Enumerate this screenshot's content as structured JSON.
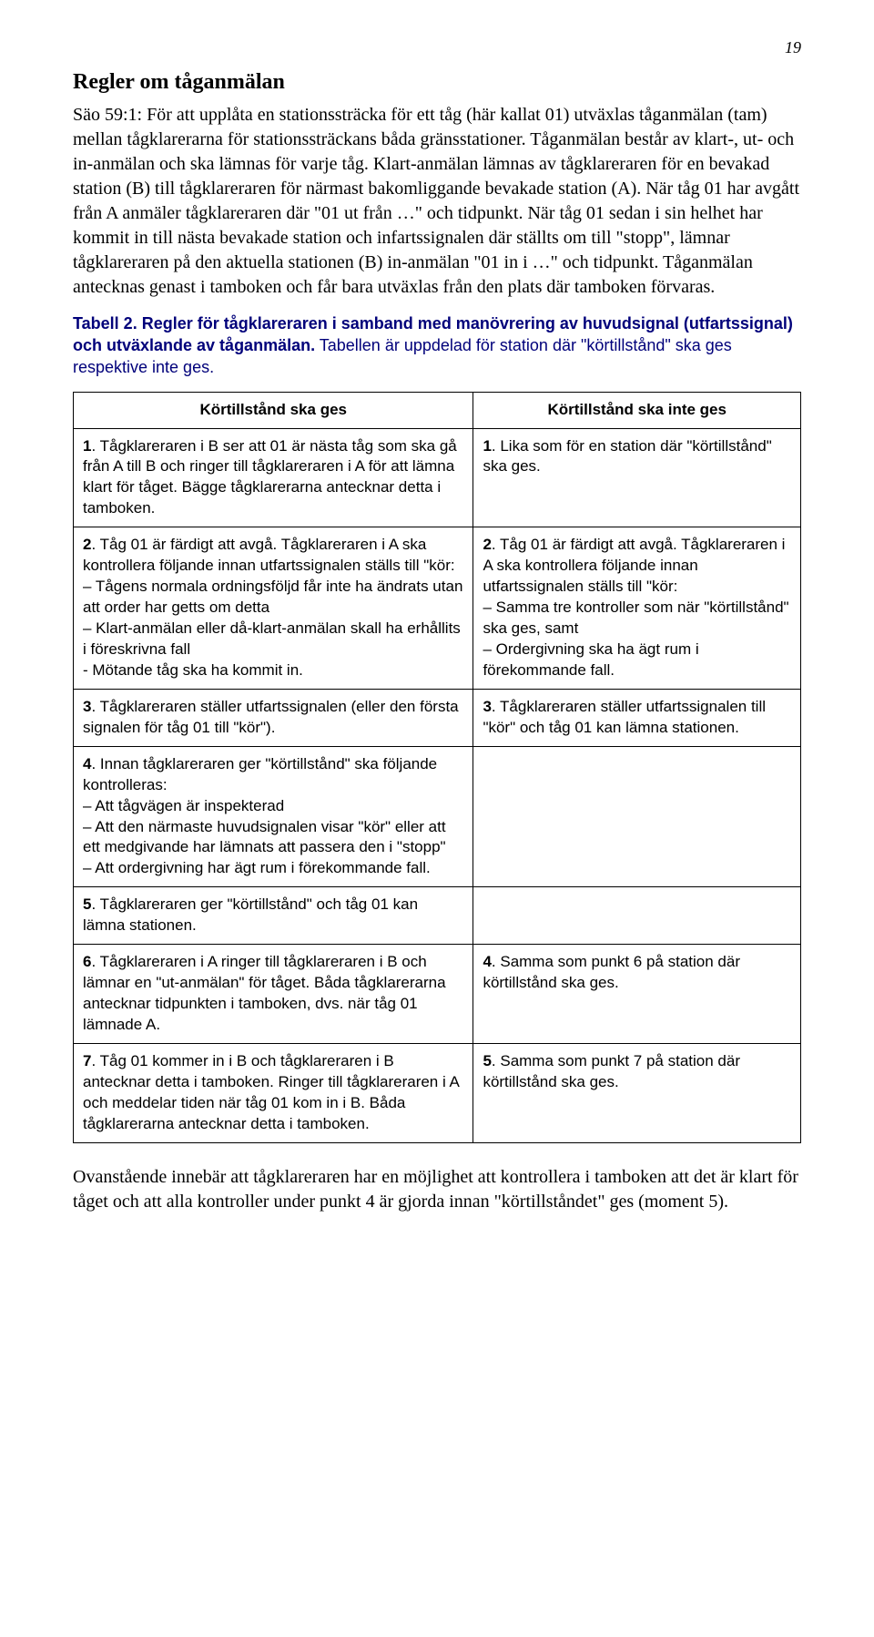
{
  "page": {
    "number": "19"
  },
  "heading": "Regler om tåganmälan",
  "para1": "Säo 59:1: För att upplåta en stationssträcka för ett tåg (här kallat 01) utväxlas tåganmälan (tam) mellan tågklarerarna för stationssträckans båda gränsstationer. Tåganmälan består av klart-, ut- och in-anmälan och ska lämnas för varje tåg. Klart-anmälan lämnas av tågklareraren för en bevakad station (B) till tågklareraren för närmast bakomliggande bevakade station (A). När tåg 01 har avgått från A anmäler tågklareraren där \"01 ut från …\" och tidpunkt. När tåg 01 sedan i sin helhet har kommit in till nästa bevakade station och infartssignalen där ställts om till \"stopp\", lämnar tågklareraren på den aktuella stationen (B) in-anmälan \"01 in i …\" och tidpunkt. Tåganmälan antecknas genast i tamboken och får bara utväxlas från den plats där tamboken förvaras.",
  "tableIntro": {
    "bold": "Tabell 2. Regler för tågklareraren i samband med manövrering av huvudsignal (utfartssignal) och utväxlande av tåganmälan.",
    "rest": " Tabellen är uppdelad för station där \"körtillstånd\" ska ges respektive inte ges."
  },
  "table": {
    "colLeftHeader": "Körtillstånd ska ges",
    "colRightHeader": "Körtillstånd ska inte ges",
    "rows": [
      {
        "leftNum": "1",
        "leftText": ". Tågklareraren i B ser att 01 är nästa tåg som ska gå från A till B och ringer till tågklareraren i A för att lämna klart för tåget. Bägge tågklarerarna antecknar detta i tamboken.",
        "rightNum": "1",
        "rightText": ". Lika som för en station där \"körtillstånd\" ska ges."
      },
      {
        "leftNum": "2",
        "leftText": ". Tåg 01 är färdigt att avgå. Tågklareraren i A ska kontrollera följande innan utfartssignalen ställs till \"kör:\n– Tågens normala ordningsföljd får inte ha ändrats utan att order har getts om detta\n– Klart-anmälan eller då-klart-anmälan skall ha erhållits i föreskrivna fall\n- Mötande tåg ska ha kommit in.",
        "rightNum": "2",
        "rightText": ". Tåg 01 är färdigt att avgå. Tågklareraren i A ska kontrollera följande innan utfartssignalen ställs till \"kör:\n– Samma tre kontroller som när \"körtillstånd\" ska ges, samt\n– Ordergivning ska ha ägt rum i förekommande fall."
      },
      {
        "leftNum": "3",
        "leftText": ". Tågklareraren ställer utfartssignalen (eller den första signalen för tåg 01 till \"kör\").",
        "rightNum": "3",
        "rightText": ". Tågklareraren ställer utfartssignalen till \"kör\" och tåg 01 kan lämna stationen."
      },
      {
        "leftNum": "4",
        "leftText": ". Innan tågklareraren ger \"körtillstånd\" ska följande kontrolleras:\n– Att tågvägen är inspekterad\n– Att den närmaste huvudsignalen visar \"kör\" eller att ett medgivande har lämnats att passera den i \"stopp\"\n– Att ordergivning har ägt rum i förekommande fall.",
        "rightNum": "",
        "rightText": ""
      },
      {
        "leftNum": "5",
        "leftText": ". Tågklareraren ger \"körtillstånd\" och tåg 01 kan lämna stationen.",
        "rightNum": "",
        "rightText": ""
      },
      {
        "leftNum": "6",
        "leftText": ". Tågklareraren i A ringer till tågklareraren i B och lämnar en \"ut-anmälan\" för tåget. Båda tågklarerarna antecknar tidpunkten i tamboken, dvs. när tåg 01 lämnade A.",
        "rightNum": "4",
        "rightText": ". Samma som punkt 6 på station där körtillstånd ska ges."
      },
      {
        "leftNum": "7",
        "leftText": ". Tåg 01 kommer in i B och tågklareraren i B antecknar detta i tamboken. Ringer till tågklareraren i A och meddelar tiden när tåg 01 kom in i B. Båda tågklarerarna antecknar detta i tamboken.",
        "rightNum": "5",
        "rightText": ". Samma som punkt 7 på station där körtillstånd ska ges."
      }
    ]
  },
  "closing": "Ovanstående innebär att tågklareraren har en möjlighet att kontrollera i tamboken att det är klart för tåget och att alla kontroller under punkt 4 är gjorda innan \"körtillståndet\" ges (moment 5)."
}
